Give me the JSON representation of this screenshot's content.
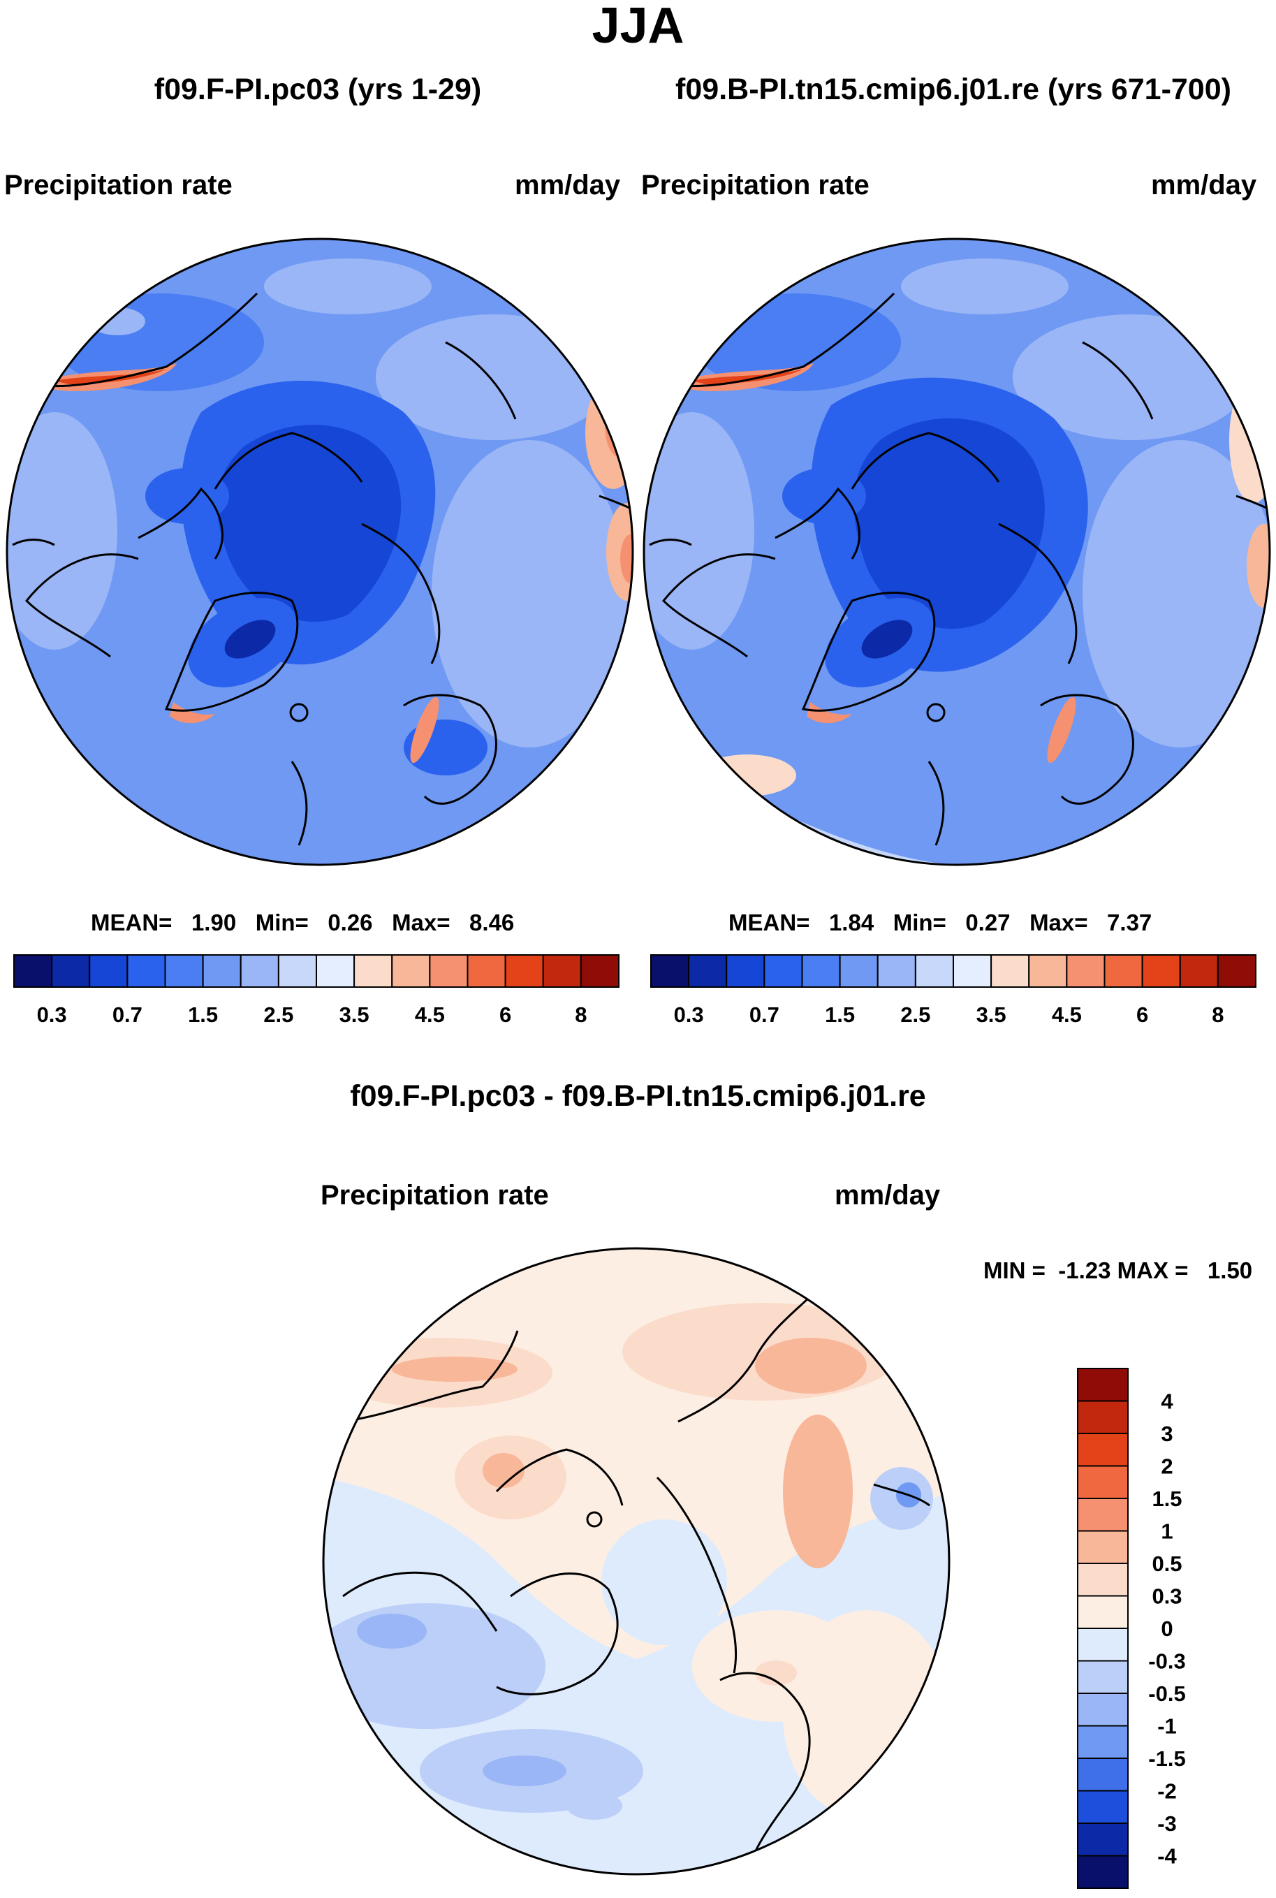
{
  "title": "JJA",
  "panels": [
    {
      "id": "left",
      "case_title": "f09.F-PI.pc03 (yrs 1-29)",
      "var_label": "Precipitation rate",
      "units": "mm/day",
      "stats": {
        "mean_label": "MEAN=",
        "mean": "1.90",
        "min_label": "Min=",
        "min": "0.26",
        "max_label": "Max=",
        "max": "8.46"
      }
    },
    {
      "id": "right",
      "case_title": "f09.B-PI.tn15.cmip6.j01.re (yrs 671-700)",
      "var_label": "Precipitation rate",
      "units": "mm/day",
      "stats": {
        "mean_label": "MEAN=",
        "mean": "1.84",
        "min_label": "Min=",
        "min": "0.27",
        "max_label": "Max=",
        "max": "7.37"
      }
    }
  ],
  "diff": {
    "title": "f09.F-PI.pc03 - f09.B-PI.tn15.cmip6.j01.re",
    "var_label": "Precipitation rate",
    "units": "mm/day",
    "stats_text": "MIN =  -1.23 MAX =   1.50"
  },
  "chart_data": [
    {
      "type": "heatmap",
      "projection": "north-polar-stereographic",
      "title": "f09.F-PI.pc03 (yrs 1-29)",
      "variable": "Precipitation rate",
      "units": "mm/day",
      "mean": 1.9,
      "min": 0.26,
      "max": 8.46,
      "colorbar": {
        "orientation": "horizontal",
        "levels": [
          0.2,
          0.3,
          0.5,
          0.7,
          1,
          1.5,
          2,
          2.5,
          3,
          3.5,
          4,
          4.5,
          5,
          6,
          7,
          8
        ],
        "tick_labels": [
          "0.3",
          "0.7",
          "1.5",
          "2.5",
          "3.5",
          "4.5",
          "6",
          "8"
        ]
      }
    },
    {
      "type": "heatmap",
      "projection": "north-polar-stereographic",
      "title": "f09.B-PI.tn15.cmip6.j01.re (yrs 671-700)",
      "variable": "Precipitation rate",
      "units": "mm/day",
      "mean": 1.84,
      "min": 0.27,
      "max": 7.37,
      "colorbar": {
        "orientation": "horizontal",
        "levels": [
          0.2,
          0.3,
          0.5,
          0.7,
          1,
          1.5,
          2,
          2.5,
          3,
          3.5,
          4,
          4.5,
          5,
          6,
          7,
          8
        ],
        "tick_labels": [
          "0.3",
          "0.7",
          "1.5",
          "2.5",
          "3.5",
          "4.5",
          "6",
          "8"
        ]
      }
    },
    {
      "type": "heatmap",
      "projection": "north-polar-stereographic",
      "title": "f09.F-PI.pc03 - f09.B-PI.tn15.cmip6.j01.re",
      "variable": "Precipitation rate",
      "units": "mm/day",
      "min": -1.23,
      "max": 1.5,
      "colorbar": {
        "orientation": "vertical",
        "levels": [
          -4,
          -3,
          -2,
          -1.5,
          -1,
          -0.5,
          -0.3,
          0,
          0.3,
          0.5,
          1,
          1.5,
          2,
          3,
          4
        ],
        "tick_labels": [
          "4",
          "3",
          "2",
          "1.5",
          "1",
          "0.5",
          "0.3",
          "0",
          "-0.3",
          "-0.5",
          "-1",
          "-1.5",
          "-2",
          "-3",
          "-4"
        ]
      }
    }
  ],
  "colors": {
    "seq_scale": [
      "#08106b",
      "#0c2aa8",
      "#1646d6",
      "#2a62ee",
      "#4a7ef2",
      "#6f99f3",
      "#9ab6f6",
      "#c7d8fb",
      "#e5eefe",
      "#fbdccb",
      "#f8b798",
      "#f59170",
      "#f0683f",
      "#e4431a",
      "#c1280d",
      "#8f0d06",
      "#6e0402"
    ],
    "div_scale": [
      "#8f0d06",
      "#c1280d",
      "#e4431a",
      "#f0683f",
      "#f59170",
      "#f8b798",
      "#fbdccb",
      "#fdeee3",
      "#deebfc",
      "#bccff8",
      "#9ab6f6",
      "#6f99f3",
      "#3f70ea",
      "#1d4fdc",
      "#0c2aa8",
      "#08106b"
    ]
  }
}
